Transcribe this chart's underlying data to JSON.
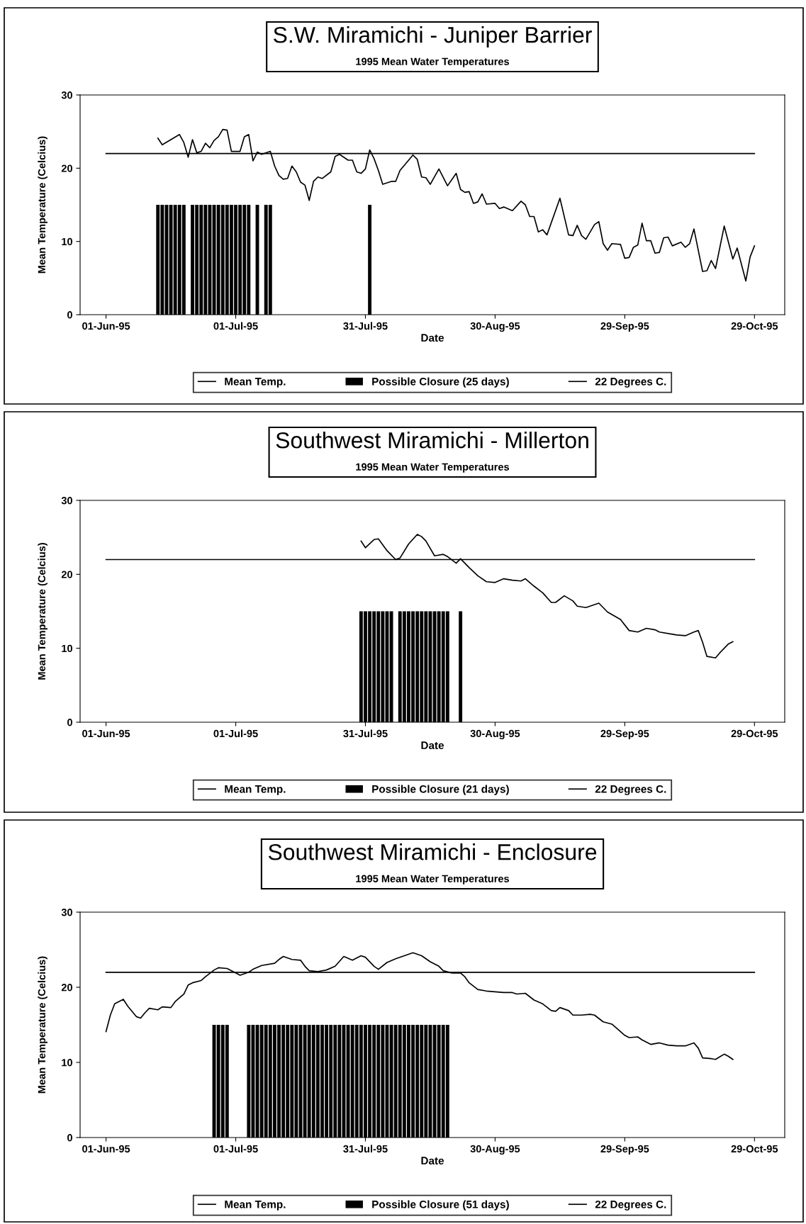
{
  "chart_data": [
    {
      "type": "line",
      "title": "S.W. Miramichi - Juniper Barrier",
      "subtitle": "1995 Mean Water Temperatures",
      "xlabel": "Date",
      "ylabel": "Mean Temperature (Celcius)",
      "xlim": [
        "1995-05-26",
        "1995-11-05"
      ],
      "xticks": [
        {
          "value": "1995-06-01",
          "label": "01-Jun-95"
        },
        {
          "value": "1995-07-01",
          "label": "01-Jul-95"
        },
        {
          "value": "1995-07-31",
          "label": "31-Jul-95"
        },
        {
          "value": "1995-08-30",
          "label": "30-Aug-95"
        },
        {
          "value": "1995-09-29",
          "label": "29-Sep-95"
        },
        {
          "value": "1995-10-29",
          "label": "29-Oct-95"
        }
      ],
      "ylim": [
        0,
        30
      ],
      "yticks": [
        0,
        10,
        20,
        30
      ],
      "legend": "bottom",
      "series": [
        {
          "name": "Mean Temp.",
          "type": "line",
          "color": "#000000",
          "x": [
            "1995-06-13",
            "1995-06-14",
            "1995-06-18",
            "1995-06-19",
            "1995-06-20",
            "1995-06-21",
            "1995-06-22",
            "1995-06-23",
            "1995-06-24",
            "1995-06-25",
            "1995-06-26",
            "1995-06-27",
            "1995-06-28",
            "1995-06-29",
            "1995-06-30",
            "1995-07-02",
            "1995-07-03",
            "1995-07-04",
            "1995-07-05",
            "1995-07-06",
            "1995-07-07",
            "1995-07-09",
            "1995-07-10",
            "1995-07-11",
            "1995-07-12",
            "1995-07-13",
            "1995-07-14",
            "1995-07-15",
            "1995-07-16",
            "1995-07-17",
            "1995-07-18",
            "1995-07-19",
            "1995-07-20",
            "1995-07-21",
            "1995-07-23",
            "1995-07-24",
            "1995-07-25",
            "1995-07-27",
            "1995-07-28",
            "1995-07-29",
            "1995-07-30",
            "1995-07-31",
            "1995-08-01",
            "1995-08-02",
            "1995-08-03",
            "1995-08-04",
            "1995-08-06",
            "1995-08-07",
            "1995-08-08",
            "1995-08-10",
            "1995-08-11",
            "1995-08-12",
            "1995-08-13",
            "1995-08-14",
            "1995-08-15",
            "1995-08-17",
            "1995-08-19",
            "1995-08-21",
            "1995-08-22",
            "1995-08-23",
            "1995-08-24",
            "1995-08-25",
            "1995-08-26",
            "1995-08-27",
            "1995-08-28",
            "1995-08-30",
            "1995-08-31",
            "1995-09-01",
            "1995-09-03",
            "1995-09-05",
            "1995-09-06",
            "1995-09-07",
            "1995-09-08",
            "1995-09-09",
            "1995-09-10",
            "1995-09-11",
            "1995-09-14",
            "1995-09-16",
            "1995-09-17",
            "1995-09-18",
            "1995-09-19",
            "1995-09-20",
            "1995-09-22",
            "1995-09-23",
            "1995-09-24",
            "1995-09-25",
            "1995-09-26",
            "1995-09-28",
            "1995-09-29",
            "1995-09-30",
            "1995-10-01",
            "1995-10-02",
            "1995-10-03",
            "1995-10-04",
            "1995-10-05",
            "1995-10-06",
            "1995-10-07",
            "1995-10-08",
            "1995-10-09",
            "1995-10-10",
            "1995-10-12",
            "1995-10-13",
            "1995-10-14",
            "1995-10-15",
            "1995-10-17",
            "1995-10-18",
            "1995-10-19",
            "1995-10-20",
            "1995-10-22",
            "1995-10-24",
            "1995-10-25",
            "1995-10-27",
            "1995-10-28",
            "1995-10-29"
          ],
          "values": [
            24.1,
            23.2,
            24.6,
            23.5,
            21.5,
            23.9,
            22.1,
            22.3,
            23.4,
            22.8,
            23.8,
            24.3,
            25.3,
            25.2,
            22.3,
            22.3,
            24.3,
            24.6,
            21.0,
            22.2,
            21.9,
            22.3,
            20.3,
            19.0,
            18.5,
            18.6,
            20.3,
            19.5,
            18.1,
            17.7,
            15.6,
            18.2,
            18.8,
            18.6,
            19.5,
            21.6,
            21.9,
            21.1,
            21.1,
            19.5,
            19.3,
            19.9,
            22.5,
            21.3,
            19.7,
            17.8,
            18.2,
            18.2,
            19.7,
            21.1,
            21.8,
            21.2,
            18.8,
            18.7,
            17.8,
            19.9,
            17.6,
            19.3,
            17.1,
            16.7,
            16.8,
            15.2,
            15.4,
            16.5,
            15.1,
            15.2,
            14.5,
            14.7,
            14.2,
            15.5,
            15.0,
            13.4,
            13.4,
            11.3,
            11.6,
            10.9,
            15.9,
            10.9,
            10.8,
            12.2,
            10.8,
            10.3,
            12.3,
            12.7,
            9.7,
            8.8,
            9.7,
            9.6,
            7.7,
            7.8,
            9.2,
            9.5,
            12.5,
            10.1,
            10.1,
            8.4,
            8.5,
            10.5,
            10.6,
            9.4,
            9.9,
            9.2,
            9.7,
            11.7,
            5.9,
            6.0,
            7.4,
            6.3,
            12.1,
            7.6,
            9.1,
            4.6,
            7.9,
            9.4
          ]
        },
        {
          "name": "Possible Closure (25 days)",
          "type": "bar",
          "color": "#000000",
          "x": [
            "1995-06-13",
            "1995-06-14",
            "1995-06-15",
            "1995-06-16",
            "1995-06-17",
            "1995-06-18",
            "1995-06-19",
            "1995-06-21",
            "1995-06-22",
            "1995-06-23",
            "1995-06-24",
            "1995-06-25",
            "1995-06-26",
            "1995-06-27",
            "1995-06-28",
            "1995-06-29",
            "1995-06-30",
            "1995-07-01",
            "1995-07-02",
            "1995-07-03",
            "1995-07-04",
            "1995-07-06",
            "1995-07-08",
            "1995-07-09",
            "1995-08-01"
          ],
          "values": [
            15,
            15,
            15,
            15,
            15,
            15,
            15,
            15,
            15,
            15,
            15,
            15,
            15,
            15,
            15,
            15,
            15,
            15,
            15,
            15,
            15,
            15,
            15,
            15,
            15
          ]
        },
        {
          "name": "22 Degrees C.",
          "color": "#000000",
          "x": [
            "1995-06-01",
            "1995-10-29"
          ],
          "values": [
            22,
            22
          ]
        }
      ]
    },
    {
      "type": "line",
      "title": "Southwest Miramichi - Millerton",
      "subtitle": "1995 Mean Water Temperatures",
      "xlabel": "Date",
      "ylabel": "Mean Temperature (Celcius)",
      "xlim": [
        "1995-05-26",
        "1995-11-05"
      ],
      "xticks": [
        {
          "value": "1995-06-01",
          "label": "01-Jun-95"
        },
        {
          "value": "1995-07-01",
          "label": "01-Jul-95"
        },
        {
          "value": "1995-07-31",
          "label": "31-Jul-95"
        },
        {
          "value": "1995-08-30",
          "label": "30-Aug-95"
        },
        {
          "value": "1995-09-29",
          "label": "29-Sep-95"
        },
        {
          "value": "1995-10-29",
          "label": "29-Oct-95"
        }
      ],
      "ylim": [
        0,
        30
      ],
      "yticks": [
        0,
        10,
        20,
        30
      ],
      "legend": "bottom",
      "series": [
        {
          "name": "Mean Temp.",
          "type": "line",
          "color": "#000000",
          "x": [
            "1995-07-30",
            "1995-07-31",
            "1995-08-02",
            "1995-08-03",
            "1995-08-05",
            "1995-08-07",
            "1995-08-08",
            "1995-08-10",
            "1995-08-12",
            "1995-08-13",
            "1995-08-14",
            "1995-08-16",
            "1995-08-18",
            "1995-08-19",
            "1995-08-21",
            "1995-08-22",
            "1995-08-24",
            "1995-08-26",
            "1995-08-28",
            "1995-08-30",
            "1995-09-01",
            "1995-09-03",
            "1995-09-05",
            "1995-09-06",
            "1995-09-08",
            "1995-09-10",
            "1995-09-12",
            "1995-09-13",
            "1995-09-15",
            "1995-09-17",
            "1995-09-18",
            "1995-09-20",
            "1995-09-23",
            "1995-09-25",
            "1995-09-28",
            "1995-09-30",
            "1995-10-02",
            "1995-10-04",
            "1995-10-06",
            "1995-10-07",
            "1995-10-10",
            "1995-10-11",
            "1995-10-13",
            "1995-10-15",
            "1995-10-16",
            "1995-10-17",
            "1995-10-18",
            "1995-10-20",
            "1995-10-21",
            "1995-10-23",
            "1995-10-24"
          ],
          "values": [
            24.5,
            23.6,
            24.7,
            24.8,
            23.2,
            22.0,
            22.2,
            24.1,
            25.4,
            25.1,
            24.5,
            22.5,
            22.7,
            22.4,
            21.5,
            22.1,
            20.9,
            19.8,
            19.0,
            18.9,
            19.4,
            19.2,
            19.1,
            19.4,
            18.4,
            17.5,
            16.2,
            16.2,
            17.1,
            16.4,
            15.7,
            15.5,
            16.1,
            14.9,
            13.9,
            12.4,
            12.2,
            12.7,
            12.5,
            12.2,
            11.9,
            11.8,
            11.7,
            12.2,
            12.4,
            10.8,
            8.9,
            8.7,
            9.4,
            10.6,
            10.9
          ]
        },
        {
          "name": "Possible Closure (21 days)",
          "type": "bar",
          "color": "#000000",
          "x": [
            "1995-07-30",
            "1995-07-31",
            "1995-08-01",
            "1995-08-02",
            "1995-08-03",
            "1995-08-04",
            "1995-08-05",
            "1995-08-06",
            "1995-08-08",
            "1995-08-09",
            "1995-08-10",
            "1995-08-11",
            "1995-08-12",
            "1995-08-13",
            "1995-08-14",
            "1995-08-15",
            "1995-08-16",
            "1995-08-17",
            "1995-08-18",
            "1995-08-19",
            "1995-08-22"
          ],
          "values": [
            15,
            15,
            15,
            15,
            15,
            15,
            15,
            15,
            15,
            15,
            15,
            15,
            15,
            15,
            15,
            15,
            15,
            15,
            15,
            15,
            15
          ]
        },
        {
          "name": "22 Degrees C.",
          "color": "#000000",
          "x": [
            "1995-06-01",
            "1995-10-29"
          ],
          "values": [
            22,
            22
          ]
        }
      ]
    },
    {
      "type": "line",
      "title": "Southwest Miramichi - Enclosure",
      "subtitle": "1995 Mean Water Temperatures",
      "xlabel": "Date",
      "ylabel": "Mean Temperature (Celcius)",
      "xlim": [
        "1995-05-26",
        "1995-11-05"
      ],
      "xticks": [
        {
          "value": "1995-06-01",
          "label": "01-Jun-95"
        },
        {
          "value": "1995-07-01",
          "label": "01-Jul-95"
        },
        {
          "value": "1995-07-31",
          "label": "31-Jul-95"
        },
        {
          "value": "1995-08-30",
          "label": "30-Aug-95"
        },
        {
          "value": "1995-09-29",
          "label": "29-Sep-95"
        },
        {
          "value": "1995-10-29",
          "label": "29-Oct-95"
        }
      ],
      "ylim": [
        0,
        30
      ],
      "yticks": [
        0,
        10,
        20,
        30
      ],
      "legend": "bottom",
      "series": [
        {
          "name": "Mean Temp.",
          "type": "line",
          "color": "#000000",
          "x": [
            "1995-06-01",
            "1995-06-02",
            "1995-06-03",
            "1995-06-05",
            "1995-06-06",
            "1995-06-08",
            "1995-06-09",
            "1995-06-10",
            "1995-06-11",
            "1995-06-13",
            "1995-06-14",
            "1995-06-16",
            "1995-06-17",
            "1995-06-19",
            "1995-06-20",
            "1995-06-21",
            "1995-06-23",
            "1995-06-24",
            "1995-06-26",
            "1995-06-27",
            "1995-06-29",
            "1995-07-01",
            "1995-07-02",
            "1995-07-04",
            "1995-07-05",
            "1995-07-07",
            "1995-07-10",
            "1995-07-11",
            "1995-07-12",
            "1995-07-14",
            "1995-07-16",
            "1995-07-17",
            "1995-07-18",
            "1995-07-20",
            "1995-07-22",
            "1995-07-24",
            "1995-07-26",
            "1995-07-28",
            "1995-07-30",
            "1995-07-31",
            "1995-08-02",
            "1995-08-03",
            "1995-08-05",
            "1995-08-07",
            "1995-08-09",
            "1995-08-11",
            "1995-08-13",
            "1995-08-15",
            "1995-08-17",
            "1995-08-18",
            "1995-08-20",
            "1995-08-22",
            "1995-08-23",
            "1995-08-24",
            "1995-08-26",
            "1995-08-28",
            "1995-08-30",
            "1995-09-01",
            "1995-09-03",
            "1995-09-04",
            "1995-09-06",
            "1995-09-08",
            "1995-09-10",
            "1995-09-12",
            "1995-09-13",
            "1995-09-14",
            "1995-09-16",
            "1995-09-17",
            "1995-09-19",
            "1995-09-21",
            "1995-09-22",
            "1995-09-24",
            "1995-09-26",
            "1995-09-27",
            "1995-09-29",
            "1995-09-30",
            "1995-10-02",
            "1995-10-03",
            "1995-10-05",
            "1995-10-07",
            "1995-10-09",
            "1995-10-11",
            "1995-10-13",
            "1995-10-15",
            "1995-10-16",
            "1995-10-17",
            "1995-10-19",
            "1995-10-20",
            "1995-10-22",
            "1995-10-23",
            "1995-10-24"
          ],
          "values": [
            14.1,
            16.3,
            17.8,
            18.4,
            17.5,
            16.1,
            15.9,
            16.6,
            17.2,
            17.0,
            17.4,
            17.3,
            18.1,
            19.1,
            20.3,
            20.6,
            20.9,
            21.4,
            22.3,
            22.6,
            22.5,
            21.9,
            21.6,
            22.0,
            22.4,
            22.9,
            23.2,
            23.7,
            24.1,
            23.7,
            23.6,
            22.8,
            22.2,
            22.1,
            22.3,
            22.8,
            24.1,
            23.6,
            24.2,
            24.0,
            22.8,
            22.4,
            23.3,
            23.8,
            24.2,
            24.6,
            24.2,
            23.4,
            22.8,
            22.2,
            21.9,
            21.9,
            21.4,
            20.6,
            19.7,
            19.5,
            19.4,
            19.3,
            19.3,
            19.1,
            19.2,
            18.3,
            17.8,
            16.9,
            16.8,
            17.3,
            16.9,
            16.3,
            16.3,
            16.4,
            16.3,
            15.4,
            15.1,
            14.6,
            13.6,
            13.3,
            13.4,
            13.0,
            12.4,
            12.6,
            12.3,
            12.2,
            12.2,
            12.6,
            11.9,
            10.6,
            10.5,
            10.4,
            11.1,
            10.8,
            10.4
          ]
        },
        {
          "name": "Possible Closure (51 days)",
          "type": "bar",
          "color": "#000000",
          "x": [
            "1995-06-26",
            "1995-06-27",
            "1995-06-28",
            "1995-06-29",
            "1995-07-04",
            "1995-07-05",
            "1995-07-06",
            "1995-07-07",
            "1995-07-08",
            "1995-07-09",
            "1995-07-10",
            "1995-07-11",
            "1995-07-12",
            "1995-07-13",
            "1995-07-14",
            "1995-07-15",
            "1995-07-16",
            "1995-07-17",
            "1995-07-18",
            "1995-07-19",
            "1995-07-20",
            "1995-07-21",
            "1995-07-22",
            "1995-07-23",
            "1995-07-24",
            "1995-07-25",
            "1995-07-26",
            "1995-07-27",
            "1995-07-28",
            "1995-07-29",
            "1995-07-30",
            "1995-07-31",
            "1995-08-01",
            "1995-08-02",
            "1995-08-03",
            "1995-08-04",
            "1995-08-05",
            "1995-08-06",
            "1995-08-07",
            "1995-08-08",
            "1995-08-09",
            "1995-08-10",
            "1995-08-11",
            "1995-08-12",
            "1995-08-13",
            "1995-08-14",
            "1995-08-15",
            "1995-08-16",
            "1995-08-17",
            "1995-08-18",
            "1995-08-19"
          ],
          "values": [
            15,
            15,
            15,
            15,
            15,
            15,
            15,
            15,
            15,
            15,
            15,
            15,
            15,
            15,
            15,
            15,
            15,
            15,
            15,
            15,
            15,
            15,
            15,
            15,
            15,
            15,
            15,
            15,
            15,
            15,
            15,
            15,
            15,
            15,
            15,
            15,
            15,
            15,
            15,
            15,
            15,
            15,
            15,
            15,
            15,
            15,
            15,
            15,
            15,
            15,
            15
          ]
        },
        {
          "name": "22 Degrees C.",
          "color": "#000000",
          "x": [
            "1995-06-01",
            "1995-10-29"
          ],
          "values": [
            22,
            22
          ]
        }
      ]
    }
  ]
}
